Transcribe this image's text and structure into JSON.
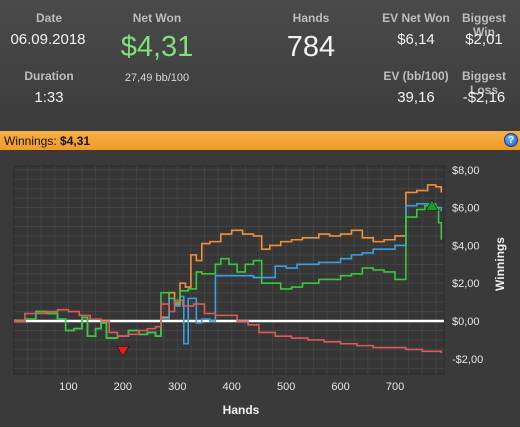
{
  "header": {
    "date_label": "Date",
    "date_value": "06.09.2018",
    "duration_label": "Duration",
    "duration_value": "1:33",
    "net_won_label": "Net Won",
    "net_won_value": "$4,31",
    "net_won_rate": "27,49 bb/100",
    "hands_label": "Hands",
    "hands_value": "784",
    "ev_net_won_label": "EV Net Won",
    "ev_net_won_value": "$6,14",
    "biggest_win_label": "Biggest Win",
    "biggest_win_value": "$2,01",
    "ev_bb_label": "EV (bb/100)",
    "ev_bb_value": "39,16",
    "biggest_loss_label": "Biggest Loss",
    "biggest_loss_value": "-$2,16",
    "net_won_color": "#7fe07a"
  },
  "winnings_bar": {
    "label": "Winnings:",
    "value": "$4,31",
    "help_glyph": "?"
  },
  "chart_data": {
    "type": "line",
    "xlabel": "Hands",
    "ylabel": "Winnings",
    "xlim": [
      0,
      790
    ],
    "ylim": [
      -2.8,
      8.2
    ],
    "x_ticks": [
      100,
      200,
      300,
      400,
      500,
      600,
      700
    ],
    "x_tick_labels": [
      "100",
      "200",
      "300",
      "400",
      "500",
      "600",
      "700"
    ],
    "y_ticks": [
      8,
      6,
      4,
      2,
      0,
      -2
    ],
    "y_tick_labels": [
      "$8,00",
      "$6,00",
      "$4,00",
      "$2,00",
      "$0,00",
      "-$2,00"
    ],
    "grid": true,
    "zero_line_color": "#ffffff",
    "series": [
      {
        "color": "#f2913c",
        "points": [
          [
            0,
            0
          ],
          [
            20,
            0.1
          ],
          [
            40,
            0.5
          ],
          [
            60,
            0.4
          ],
          [
            80,
            0.1
          ],
          [
            95,
            -0.5
          ],
          [
            110,
            -0.4
          ],
          [
            125,
            0.2
          ],
          [
            135,
            -0.8
          ],
          [
            150,
            -0.4
          ],
          [
            160,
            -0.1
          ],
          [
            170,
            -0.9
          ],
          [
            190,
            -0.8
          ],
          [
            210,
            -0.5
          ],
          [
            230,
            -0.7
          ],
          [
            245,
            -0.6
          ],
          [
            260,
            -0.8
          ],
          [
            270,
            0.2
          ],
          [
            285,
            1.5
          ],
          [
            295,
            0.9
          ],
          [
            305,
            2.0
          ],
          [
            315,
            1.8
          ],
          [
            325,
            3.5
          ],
          [
            335,
            3.2
          ],
          [
            345,
            4.1
          ],
          [
            360,
            4.2
          ],
          [
            380,
            4.6
          ],
          [
            400,
            4.8
          ],
          [
            420,
            4.6
          ],
          [
            440,
            4.5
          ],
          [
            455,
            3.8
          ],
          [
            470,
            4.0
          ],
          [
            490,
            4.2
          ],
          [
            510,
            4.3
          ],
          [
            530,
            4.4
          ],
          [
            560,
            4.6
          ],
          [
            580,
            4.5
          ],
          [
            600,
            4.6
          ],
          [
            620,
            4.8
          ],
          [
            640,
            4.4
          ],
          [
            660,
            4.2
          ],
          [
            680,
            4.3
          ],
          [
            700,
            4.5
          ],
          [
            720,
            6.8
          ],
          [
            740,
            6.9
          ],
          [
            760,
            7.2
          ],
          [
            775,
            7.1
          ],
          [
            785,
            6.8
          ]
        ]
      },
      {
        "color": "#3aa0e6",
        "points": [
          [
            0,
            0
          ],
          [
            20,
            0.1
          ],
          [
            40,
            0.5
          ],
          [
            60,
            0.4
          ],
          [
            80,
            0.1
          ],
          [
            95,
            -0.5
          ],
          [
            110,
            -0.4
          ],
          [
            125,
            0.2
          ],
          [
            135,
            -0.8
          ],
          [
            150,
            -0.4
          ],
          [
            160,
            -0.1
          ],
          [
            170,
            -0.9
          ],
          [
            190,
            -0.8
          ],
          [
            210,
            -0.5
          ],
          [
            230,
            -0.7
          ],
          [
            245,
            -0.6
          ],
          [
            260,
            -0.8
          ],
          [
            270,
            0.1
          ],
          [
            285,
            1.2
          ],
          [
            295,
            0.8
          ],
          [
            305,
            1.3
          ],
          [
            312,
            -1.2
          ],
          [
            320,
            1.2
          ],
          [
            335,
            -0.1
          ],
          [
            345,
            0.1
          ],
          [
            360,
            0.0
          ],
          [
            370,
            2.4
          ],
          [
            400,
            2.4
          ],
          [
            420,
            2.4
          ],
          [
            440,
            2.3
          ],
          [
            460,
            2.3
          ],
          [
            480,
            2.9
          ],
          [
            500,
            2.8
          ],
          [
            520,
            3.0
          ],
          [
            560,
            3.1
          ],
          [
            600,
            3.3
          ],
          [
            620,
            3.5
          ],
          [
            640,
            3.6
          ],
          [
            660,
            3.8
          ],
          [
            680,
            3.8
          ],
          [
            700,
            4.0
          ],
          [
            720,
            6.1
          ],
          [
            740,
            6.2
          ],
          [
            760,
            6.2
          ],
          [
            775,
            6.0
          ],
          [
            785,
            5.8
          ]
        ]
      },
      {
        "color": "#38c93a",
        "points": [
          [
            0,
            0
          ],
          [
            20,
            0.1
          ],
          [
            40,
            0.5
          ],
          [
            60,
            0.4
          ],
          [
            80,
            0.1
          ],
          [
            95,
            -0.5
          ],
          [
            110,
            -0.4
          ],
          [
            125,
            0.2
          ],
          [
            135,
            -0.8
          ],
          [
            150,
            -0.4
          ],
          [
            160,
            -0.1
          ],
          [
            170,
            -0.9
          ],
          [
            190,
            -0.8
          ],
          [
            210,
            -0.5
          ],
          [
            230,
            -0.7
          ],
          [
            245,
            -0.6
          ],
          [
            260,
            -0.8
          ],
          [
            270,
            1.5
          ],
          [
            285,
            1.2
          ],
          [
            295,
            1.0
          ],
          [
            305,
            1.6
          ],
          [
            320,
            1.7
          ],
          [
            335,
            2.6
          ],
          [
            345,
            2.5
          ],
          [
            360,
            2.5
          ],
          [
            370,
            3.0
          ],
          [
            380,
            3.3
          ],
          [
            395,
            3.0
          ],
          [
            410,
            2.6
          ],
          [
            425,
            3.0
          ],
          [
            440,
            3.2
          ],
          [
            455,
            2.0
          ],
          [
            470,
            2.0
          ],
          [
            490,
            1.7
          ],
          [
            510,
            1.8
          ],
          [
            530,
            2.0
          ],
          [
            560,
            2.2
          ],
          [
            580,
            2.2
          ],
          [
            600,
            2.4
          ],
          [
            620,
            2.5
          ],
          [
            640,
            2.8
          ],
          [
            660,
            2.7
          ],
          [
            680,
            2.6
          ],
          [
            700,
            2.2
          ],
          [
            720,
            5.5
          ],
          [
            740,
            5.9
          ],
          [
            755,
            6.1
          ],
          [
            770,
            6.0
          ],
          [
            780,
            5.2
          ],
          [
            785,
            4.3
          ]
        ]
      },
      {
        "color": "#e05a5a",
        "points": [
          [
            0,
            0
          ],
          [
            20,
            0.4
          ],
          [
            40,
            0.4
          ],
          [
            60,
            0.5
          ],
          [
            80,
            0.6
          ],
          [
            100,
            0.5
          ],
          [
            120,
            0.3
          ],
          [
            140,
            0.1
          ],
          [
            160,
            0.0
          ],
          [
            175,
            -0.6
          ],
          [
            190,
            -0.8
          ],
          [
            210,
            -0.7
          ],
          [
            230,
            -0.5
          ],
          [
            245,
            -0.4
          ],
          [
            260,
            -0.3
          ],
          [
            270,
            0.9
          ],
          [
            285,
            0.5
          ],
          [
            295,
            1.1
          ],
          [
            310,
            0.8
          ],
          [
            330,
            0.9
          ],
          [
            350,
            0.4
          ],
          [
            370,
            0.3
          ],
          [
            390,
            0.3
          ],
          [
            410,
            0.0
          ],
          [
            430,
            -0.2
          ],
          [
            450,
            -0.6
          ],
          [
            480,
            -0.8
          ],
          [
            510,
            -0.9
          ],
          [
            540,
            -1.0
          ],
          [
            570,
            -1.1
          ],
          [
            600,
            -1.2
          ],
          [
            630,
            -1.3
          ],
          [
            660,
            -1.4
          ],
          [
            690,
            -1.4
          ],
          [
            720,
            -1.5
          ],
          [
            750,
            -1.6
          ],
          [
            770,
            -1.6
          ],
          [
            785,
            -1.7
          ]
        ]
      }
    ],
    "markers": [
      {
        "type": "biggest-loss",
        "x": 200,
        "y": -1.6,
        "color": "#e82020"
      },
      {
        "type": "biggest-win",
        "x": 768,
        "y": 6.1,
        "color": "#1f9a1f"
      }
    ]
  }
}
